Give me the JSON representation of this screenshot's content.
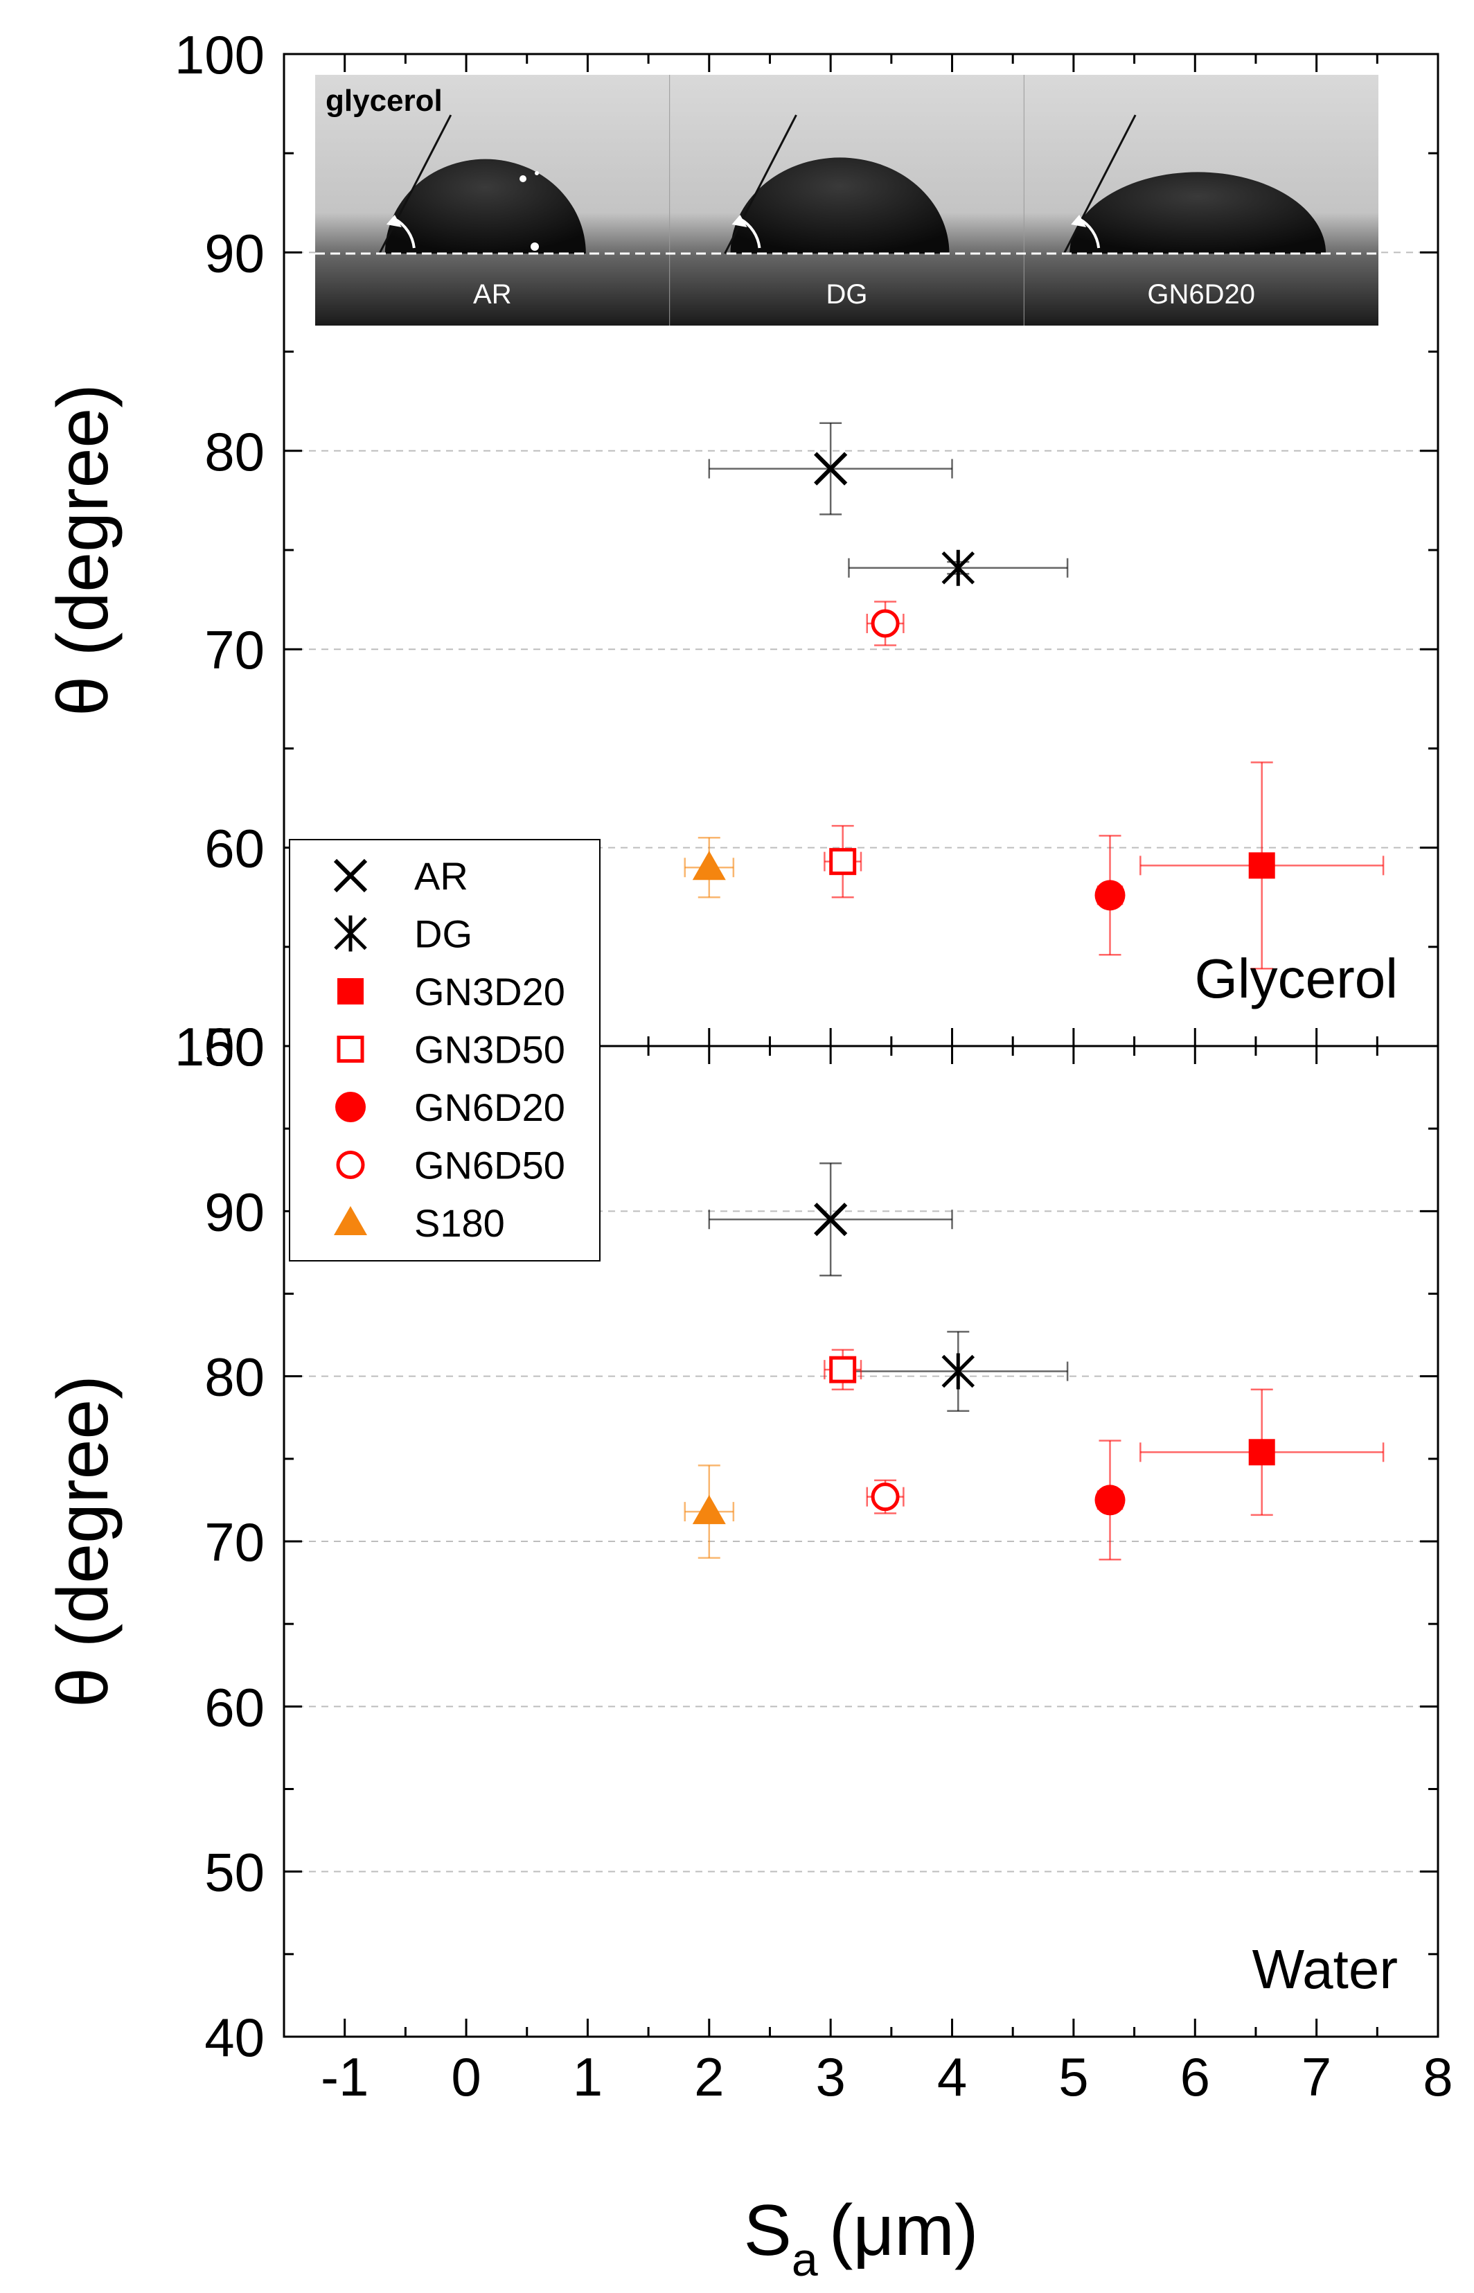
{
  "chart_data": [
    {
      "type": "scatter",
      "panel": "top",
      "panel_label": "Glycerol",
      "ylabel": "θ (degree)",
      "ylim": [
        50,
        100
      ],
      "yticks": [
        "50",
        "60",
        "70",
        "80",
        "90",
        "100"
      ],
      "xlim": [
        -1.5,
        8
      ],
      "grid": "horizontal dashed",
      "legend_position": "left",
      "series": [
        {
          "name": "AR",
          "color": "#000000",
          "marker": "x",
          "points": [
            {
              "x": 3.0,
              "y": 79.1,
              "xerr": 1.0,
              "yerr": 2.3
            }
          ]
        },
        {
          "name": "DG",
          "color": "#000000",
          "marker": "asterisk",
          "points": [
            {
              "x": 4.05,
              "y": 74.1,
              "xerr": 0.9,
              "yerr": 0.3
            }
          ]
        },
        {
          "name": "GN3D20",
          "color": "#ff0000",
          "marker": "square-filled",
          "points": [
            {
              "x": 6.55,
              "y": 59.1,
              "xerr": 1.0,
              "yerr": 5.2
            }
          ]
        },
        {
          "name": "GN3D50",
          "color": "#ff0000",
          "marker": "square-open",
          "points": [
            {
              "x": 3.1,
              "y": 59.3,
              "xerr": 0.15,
              "yerr": 1.8
            }
          ]
        },
        {
          "name": "GN6D20",
          "color": "#ff0000",
          "marker": "circle-filled",
          "points": [
            {
              "x": 5.3,
              "y": 57.6,
              "xerr": 0.1,
              "yerr": 3.0
            }
          ]
        },
        {
          "name": "GN6D50",
          "color": "#ff0000",
          "marker": "circle-open",
          "points": [
            {
              "x": 3.45,
              "y": 71.3,
              "xerr": 0.15,
              "yerr": 1.1
            }
          ]
        },
        {
          "name": "S180",
          "color": "#f5850f",
          "marker": "triangle-filled",
          "points": [
            {
              "x": 2.0,
              "y": 59.0,
              "xerr": 0.2,
              "yerr": 1.5
            }
          ]
        }
      ],
      "inset": {
        "title": "glycerol",
        "labels": [
          "AR",
          "DG",
          "GN6D20"
        ]
      }
    },
    {
      "type": "scatter",
      "panel": "bottom",
      "panel_label": "Water",
      "ylabel": "θ (degree)",
      "xlabel": "S",
      "xlabel_subscript": "a",
      "xlabel_unit": "(μm)",
      "ylim": [
        40,
        100
      ],
      "yticks": [
        "40",
        "50",
        "60",
        "70",
        "80",
        "90",
        "100"
      ],
      "xlim": [
        -1.5,
        8
      ],
      "xticks": [
        "-1",
        "0",
        "1",
        "2",
        "3",
        "4",
        "5",
        "6",
        "7",
        "8"
      ],
      "grid": "horizontal dashed",
      "series": [
        {
          "name": "AR",
          "color": "#000000",
          "marker": "x",
          "points": [
            {
              "x": 3.0,
              "y": 89.5,
              "xerr": 1.0,
              "yerr": 3.4
            }
          ]
        },
        {
          "name": "DG",
          "color": "#000000",
          "marker": "asterisk",
          "points": [
            {
              "x": 4.05,
              "y": 80.3,
              "xerr": 0.9,
              "yerr": 2.4
            }
          ]
        },
        {
          "name": "GN3D20",
          "color": "#ff0000",
          "marker": "square-filled",
          "points": [
            {
              "x": 6.55,
              "y": 75.4,
              "xerr": 1.0,
              "yerr": 3.8
            }
          ]
        },
        {
          "name": "GN3D50",
          "color": "#ff0000",
          "marker": "square-open",
          "points": [
            {
              "x": 3.1,
              "y": 80.4,
              "xerr": 0.15,
              "yerr": 1.2
            }
          ]
        },
        {
          "name": "GN6D20",
          "color": "#ff0000",
          "marker": "circle-filled",
          "points": [
            {
              "x": 5.3,
              "y": 72.5,
              "xerr": 0.1,
              "yerr": 3.6
            }
          ]
        },
        {
          "name": "GN6D50",
          "color": "#ff0000",
          "marker": "circle-open",
          "points": [
            {
              "x": 3.45,
              "y": 72.7,
              "xerr": 0.15,
              "yerr": 1.0
            }
          ]
        },
        {
          "name": "S180",
          "color": "#f5850f",
          "marker": "triangle-filled",
          "points": [
            {
              "x": 2.0,
              "y": 71.8,
              "xerr": 0.2,
              "yerr": 2.8
            }
          ]
        }
      ]
    }
  ]
}
